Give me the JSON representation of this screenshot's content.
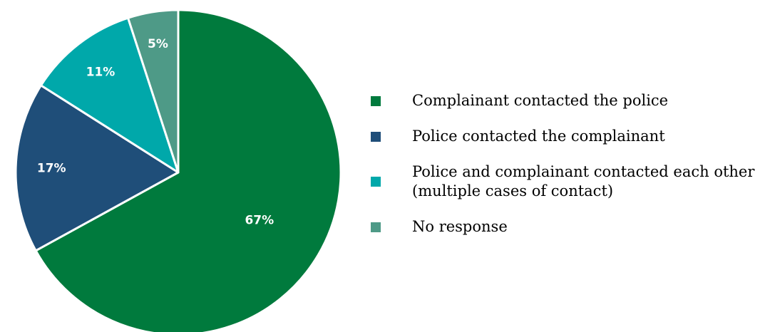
{
  "chart_data": {
    "type": "pie",
    "start_angle_deg": 0,
    "direction": "clockwise",
    "slices": [
      {
        "label": "Complainant contacted the police",
        "value": 67,
        "display": "67%",
        "color": "#007A3D"
      },
      {
        "label": "Police contacted the complainant",
        "value": 17,
        "display": "17%",
        "color": "#1F4E79"
      },
      {
        "label": "Police and complainant contacted each other\n(multiple cases of contact)",
        "value": 11,
        "display": "11%",
        "color": "#00A8AA"
      },
      {
        "label": "No response",
        "value": 5,
        "display": "5%",
        "color": "#4E9A87"
      }
    ],
    "legend_position": "right"
  }
}
